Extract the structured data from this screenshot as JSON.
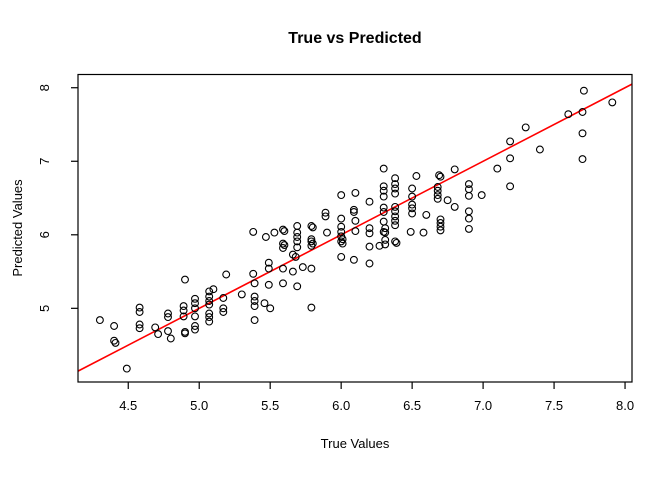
{
  "chart_data": {
    "type": "scatter",
    "title": "True vs Predicted",
    "xlabel": "True Values",
    "ylabel": "Predicted Values",
    "xlim": [
      4.146,
      8.049
    ],
    "ylim": [
      3.998,
      8.18
    ],
    "grid": false,
    "legend": "none",
    "marker": "open-circle",
    "point_color": "#000000",
    "box_color": "#000000",
    "background_color": "#FFFFFF",
    "x_ticks": [
      {
        "v": 4.5,
        "label": "4.5"
      },
      {
        "v": 5.0,
        "label": "5.0"
      },
      {
        "v": 5.5,
        "label": "5.5"
      },
      {
        "v": 6.0,
        "label": "6.0"
      },
      {
        "v": 6.5,
        "label": "6.5"
      },
      {
        "v": 7.0,
        "label": "7.0"
      },
      {
        "v": 7.5,
        "label": "7.5"
      },
      {
        "v": 8.0,
        "label": "8.0"
      }
    ],
    "y_ticks": [
      {
        "v": 5,
        "label": "5"
      },
      {
        "v": 6,
        "label": "6"
      },
      {
        "v": 7,
        "label": "7"
      },
      {
        "v": 8,
        "label": "8"
      }
    ],
    "reference_line": {
      "name": "identity-line",
      "slope": 1,
      "intercept": 0,
      "color": "#FF0000"
    },
    "points": [
      [
        4.3,
        4.84
      ],
      [
        4.4,
        4.76
      ],
      [
        4.4,
        4.56
      ],
      [
        4.41,
        4.53
      ],
      [
        4.49,
        4.18
      ],
      [
        4.58,
        5.01
      ],
      [
        4.58,
        4.95
      ],
      [
        4.58,
        4.78
      ],
      [
        4.58,
        4.73
      ],
      [
        4.69,
        4.74
      ],
      [
        4.71,
        4.65
      ],
      [
        4.78,
        4.93
      ],
      [
        4.78,
        4.88
      ],
      [
        4.78,
        4.69
      ],
      [
        4.8,
        4.59
      ],
      [
        4.89,
        5.03
      ],
      [
        4.89,
        4.97
      ],
      [
        4.89,
        4.89
      ],
      [
        4.9,
        4.68
      ],
      [
        4.9,
        4.66
      ],
      [
        4.9,
        5.39
      ],
      [
        4.97,
        5.13
      ],
      [
        4.97,
        5.07
      ],
      [
        4.97,
        5.0
      ],
      [
        4.97,
        4.89
      ],
      [
        4.97,
        4.76
      ],
      [
        4.97,
        4.71
      ],
      [
        5.07,
        5.23
      ],
      [
        5.07,
        5.16
      ],
      [
        5.07,
        5.1
      ],
      [
        5.07,
        5.05
      ],
      [
        5.07,
        4.93
      ],
      [
        5.07,
        4.88
      ],
      [
        5.07,
        4.82
      ],
      [
        5.1,
        5.26
      ],
      [
        5.17,
        5.14
      ],
      [
        5.17,
        5.0
      ],
      [
        5.17,
        4.95
      ],
      [
        5.19,
        5.46
      ],
      [
        5.3,
        5.19
      ],
      [
        5.39,
        5.16
      ],
      [
        5.39,
        5.1
      ],
      [
        5.39,
        5.03
      ],
      [
        5.39,
        4.84
      ],
      [
        5.46,
        5.07
      ],
      [
        5.38,
        6.04
      ],
      [
        5.47,
        5.97
      ],
      [
        5.53,
        6.03
      ],
      [
        5.38,
        5.47
      ],
      [
        5.39,
        5.34
      ],
      [
        5.49,
        5.62
      ],
      [
        5.49,
        5.54
      ],
      [
        5.49,
        5.32
      ],
      [
        5.5,
        5.0
      ],
      [
        5.59,
        6.07
      ],
      [
        5.6,
        6.05
      ],
      [
        5.59,
        5.88
      ],
      [
        5.6,
        5.86
      ],
      [
        5.59,
        5.82
      ],
      [
        5.59,
        5.54
      ],
      [
        5.59,
        5.34
      ],
      [
        5.66,
        5.73
      ],
      [
        5.68,
        5.7
      ],
      [
        5.66,
        5.5
      ],
      [
        5.69,
        6.12
      ],
      [
        5.69,
        6.03
      ],
      [
        5.69,
        5.97
      ],
      [
        5.69,
        5.91
      ],
      [
        5.69,
        5.83
      ],
      [
        5.69,
        5.3
      ],
      [
        5.73,
        5.56
      ],
      [
        5.79,
        6.12
      ],
      [
        5.8,
        6.1
      ],
      [
        5.79,
        5.94
      ],
      [
        5.79,
        5.91
      ],
      [
        5.8,
        5.88
      ],
      [
        5.79,
        5.85
      ],
      [
        5.79,
        5.54
      ],
      [
        5.79,
        5.01
      ],
      [
        5.89,
        6.3
      ],
      [
        5.89,
        6.25
      ],
      [
        5.9,
        6.03
      ],
      [
        6.0,
        6.54
      ],
      [
        6.0,
        6.22
      ],
      [
        6.0,
        6.11
      ],
      [
        6.0,
        6.04
      ],
      [
        6.0,
        5.98
      ],
      [
        6.01,
        5.94
      ],
      [
        6.0,
        5.91
      ],
      [
        6.01,
        5.88
      ],
      [
        6.0,
        5.7
      ],
      [
        6.09,
        6.34
      ],
      [
        6.09,
        6.31
      ],
      [
        6.1,
        6.57
      ],
      [
        6.1,
        6.19
      ],
      [
        6.1,
        6.05
      ],
      [
        6.09,
        5.66
      ],
      [
        6.2,
        6.45
      ],
      [
        6.2,
        6.09
      ],
      [
        6.2,
        6.02
      ],
      [
        6.2,
        5.84
      ],
      [
        6.2,
        5.61
      ],
      [
        6.27,
        5.85
      ],
      [
        6.3,
        6.9
      ],
      [
        6.3,
        6.66
      ],
      [
        6.3,
        6.6
      ],
      [
        6.3,
        6.52
      ],
      [
        6.3,
        6.37
      ],
      [
        6.3,
        6.31
      ],
      [
        6.3,
        6.18
      ],
      [
        6.3,
        6.04
      ],
      [
        6.31,
        6.09
      ],
      [
        6.31,
        6.03
      ],
      [
        6.31,
        5.93
      ],
      [
        6.31,
        5.87
      ],
      [
        6.38,
        6.77
      ],
      [
        6.38,
        6.69
      ],
      [
        6.38,
        6.63
      ],
      [
        6.38,
        6.56
      ],
      [
        6.38,
        6.38
      ],
      [
        6.38,
        6.32
      ],
      [
        6.38,
        6.25
      ],
      [
        6.38,
        6.19
      ],
      [
        6.38,
        6.13
      ],
      [
        6.38,
        5.91
      ],
      [
        6.39,
        5.89
      ],
      [
        6.49,
        6.04
      ],
      [
        6.5,
        6.63
      ],
      [
        6.5,
        6.52
      ],
      [
        6.5,
        6.41
      ],
      [
        6.5,
        6.36
      ],
      [
        6.5,
        6.29
      ],
      [
        6.53,
        6.8
      ],
      [
        6.58,
        6.03
      ],
      [
        6.6,
        6.27
      ],
      [
        6.68,
        6.65
      ],
      [
        6.68,
        6.6
      ],
      [
        6.68,
        6.54
      ],
      [
        6.68,
        6.49
      ],
      [
        6.69,
        6.81
      ],
      [
        6.7,
        6.79
      ],
      [
        6.7,
        6.21
      ],
      [
        6.7,
        6.16
      ],
      [
        6.7,
        6.11
      ],
      [
        6.7,
        6.06
      ],
      [
        6.75,
        6.47
      ],
      [
        6.8,
        6.89
      ],
      [
        6.8,
        6.38
      ],
      [
        6.9,
        6.69
      ],
      [
        6.9,
        6.62
      ],
      [
        6.9,
        6.53
      ],
      [
        6.9,
        6.32
      ],
      [
        6.9,
        6.22
      ],
      [
        6.9,
        6.08
      ],
      [
        6.99,
        6.54
      ],
      [
        7.1,
        6.9
      ],
      [
        7.19,
        7.27
      ],
      [
        7.19,
        7.04
      ],
      [
        7.19,
        6.66
      ],
      [
        7.3,
        7.46
      ],
      [
        7.4,
        7.16
      ],
      [
        7.6,
        7.64
      ],
      [
        7.7,
        7.67
      ],
      [
        7.7,
        7.38
      ],
      [
        7.7,
        7.03
      ],
      [
        7.71,
        7.96
      ],
      [
        7.91,
        7.8
      ]
    ]
  }
}
